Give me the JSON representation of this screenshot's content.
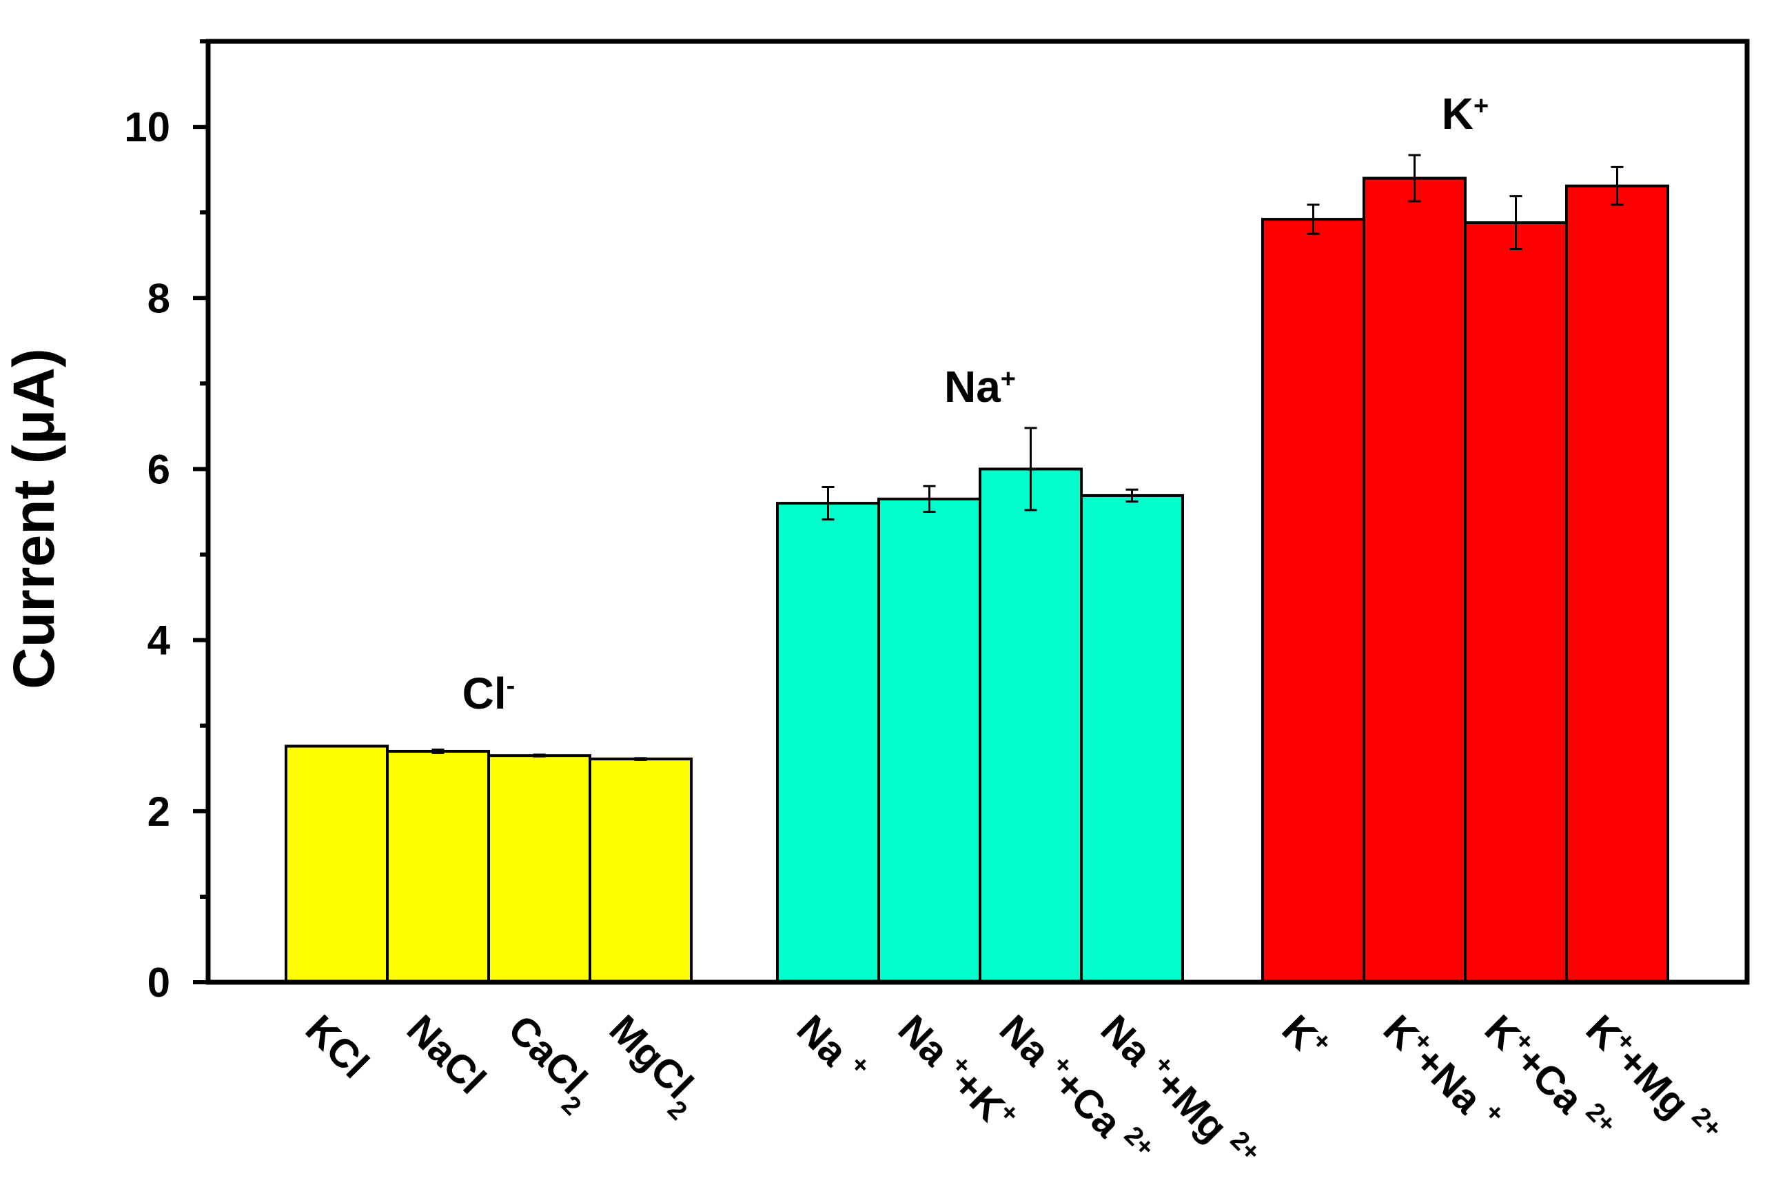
{
  "chart_data": {
    "type": "bar",
    "title": "",
    "xlabel": "",
    "ylabel": "Current (μA)",
    "ylim": [
      0,
      11
    ],
    "yticks": [
      0,
      2,
      4,
      6,
      8,
      10
    ],
    "grid": false,
    "legend": "none",
    "groups": [
      {
        "label": "Cl",
        "label_sup": "-",
        "color": "#ffff00",
        "bars": [
          {
            "category": "KCl",
            "cat_main": "KCl",
            "cat_sub": "",
            "value": 2.76,
            "error": 0.0
          },
          {
            "category": "NaCl",
            "cat_main": "NaCl",
            "cat_sub": "",
            "value": 2.7,
            "error": 0.02
          },
          {
            "category": "CaCl2",
            "cat_main": "CaCl",
            "cat_sub": "2",
            "value": 2.65,
            "error": 0.01
          },
          {
            "category": "MgCl2",
            "cat_main": "MgCl",
            "cat_sub": "2",
            "value": 2.61,
            "error": 0.01
          }
        ]
      },
      {
        "label": "Na",
        "label_sup": "+",
        "color": "#00ffcc",
        "bars": [
          {
            "category": "Na+",
            "parts": [
              [
                "Na ",
                ""
              ],
              [
                "+",
                "sup"
              ]
            ],
            "value": 5.6,
            "error": 0.19
          },
          {
            "category": "Na++K+",
            "parts": [
              [
                "Na ",
                ""
              ],
              [
                "+",
                "sup"
              ],
              [
                "+K",
                ""
              ],
              [
                "+",
                "sup"
              ]
            ],
            "value": 5.65,
            "error": 0.15
          },
          {
            "category": "Na++Ca2+",
            "parts": [
              [
                "Na ",
                ""
              ],
              [
                "+",
                "sup"
              ],
              [
                "+Ca ",
                ""
              ],
              [
                "2+",
                "sup"
              ]
            ],
            "value": 6.0,
            "error": 0.48
          },
          {
            "category": "Na++Mg2+",
            "parts": [
              [
                "Na ",
                ""
              ],
              [
                "+",
                "sup"
              ],
              [
                "+Mg ",
                ""
              ],
              [
                "2+",
                "sup"
              ]
            ],
            "value": 5.69,
            "error": 0.07
          }
        ]
      },
      {
        "label": "K",
        "label_sup": "+",
        "color": "#ff0000",
        "bars": [
          {
            "category": "K+",
            "parts": [
              [
                "K",
                ""
              ],
              [
                "+",
                "sup"
              ]
            ],
            "value": 8.92,
            "error": 0.17
          },
          {
            "category": "K++Na+",
            "parts": [
              [
                "K",
                ""
              ],
              [
                "+",
                "sup"
              ],
              [
                "+Na ",
                ""
              ],
              [
                "+",
                "sup"
              ]
            ],
            "value": 9.4,
            "error": 0.27
          },
          {
            "category": "K++Ca2+",
            "parts": [
              [
                "K",
                ""
              ],
              [
                "+",
                "sup"
              ],
              [
                "+Ca ",
                ""
              ],
              [
                "2+",
                "sup"
              ]
            ],
            "value": 8.88,
            "error": 0.31
          },
          {
            "category": "K++Mg2+",
            "parts": [
              [
                "K",
                ""
              ],
              [
                "+",
                "sup"
              ],
              [
                "+Mg ",
                ""
              ],
              [
                "2+",
                "sup"
              ]
            ],
            "value": 9.31,
            "error": 0.22
          }
        ]
      }
    ]
  }
}
